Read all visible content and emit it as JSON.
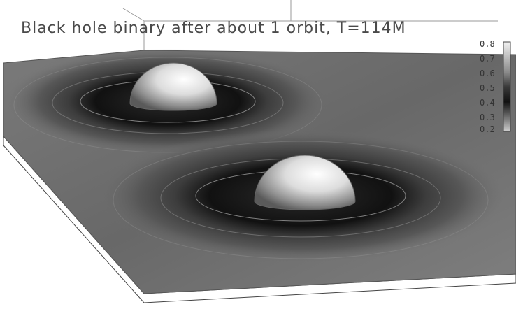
{
  "title": "Black hole binary after about 1 orbit, T=114M",
  "colorbar": {
    "ticks": [
      "0.8",
      "0.7",
      "0.6",
      "0.5",
      "0.4",
      "0.3",
      "0.2"
    ],
    "colors_top_to_bottom": [
      "#f2f2f2",
      "#bdbdbd",
      "#8a8a8a",
      "#3a3a3a",
      "#111111",
      "#6f6f6f",
      "#cfcfcf"
    ]
  },
  "render": {
    "plane_base": "#6e6e6e",
    "dome_light": "#ffffff",
    "dome_shadow": "#555555"
  }
}
